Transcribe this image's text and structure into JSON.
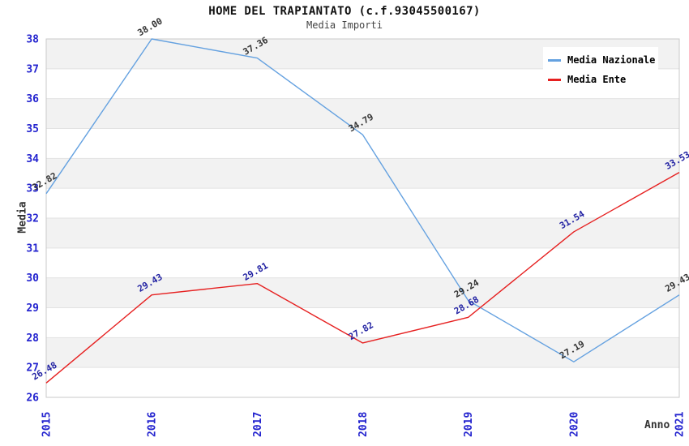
{
  "chart_data": {
    "type": "line",
    "title": "HOME DEL TRAPIANTATO (c.f.93045500167)",
    "subtitle": "Media Importi",
    "xlabel": "Anno",
    "ylabel": "Media",
    "categories": [
      "2015",
      "2016",
      "2017",
      "2018",
      "2019",
      "2020",
      "2021"
    ],
    "ylim": [
      26,
      38
    ],
    "ytick_step": 1,
    "grid": "horizontal-bands",
    "legend_position": "top-right-inside",
    "series": [
      {
        "name": "Media Nazionale",
        "color": "#64a1e0",
        "label_color": "#333333",
        "values": [
          32.82,
          38.0,
          37.36,
          34.79,
          29.24,
          27.19,
          29.43
        ],
        "point_labels": [
          "32.82",
          "38.00",
          "37.36",
          "34.79",
          "29.24",
          "27.19",
          "29.43"
        ]
      },
      {
        "name": "Media Ente",
        "color": "#e62020",
        "label_color": "#2323a3",
        "values": [
          26.48,
          29.43,
          29.81,
          27.82,
          28.68,
          31.54,
          33.53
        ],
        "point_labels": [
          "26.48",
          "29.43",
          "29.81",
          "27.82",
          "28.68",
          "31.54",
          "33.53"
        ]
      }
    ],
    "style_colors": {
      "tick_label": "#2424cf",
      "band_gray": "#f2f2f2",
      "band_white": "#ffffff",
      "gridline": "#e2e2e2",
      "plot_border": "#c9c9c9",
      "axis_title": "#333333"
    }
  }
}
